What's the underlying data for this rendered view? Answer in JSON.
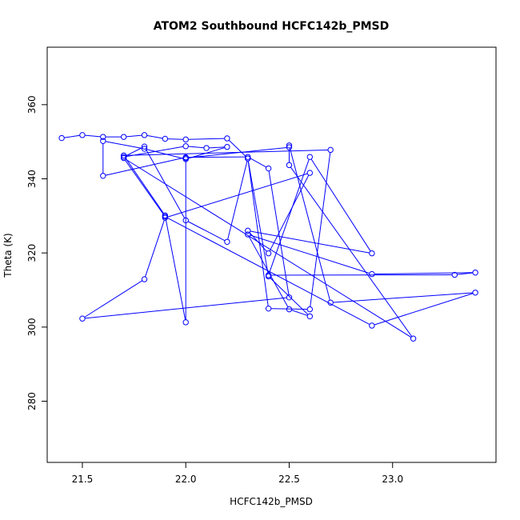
{
  "chart_data": {
    "type": "line",
    "title": "ATOM2 Southbound HCFC142b_PMSD",
    "xlabel": "HCFC142b_PMSD",
    "ylabel": "Theta (K)",
    "xlim": [
      21.33,
      23.5
    ],
    "ylim": [
      263.5,
      375.5
    ],
    "xticks": [
      21.5,
      22.0,
      22.5,
      23.0
    ],
    "xtick_labels": [
      "21.5",
      "22.0",
      "22.5",
      "23.0"
    ],
    "yticks": [
      280,
      300,
      320,
      340,
      360
    ],
    "ytick_labels": [
      "280",
      "300",
      "320",
      "340",
      "360"
    ],
    "grid": false,
    "line_color": "#0000ff",
    "marker": "open-circle",
    "series": [
      {
        "x": [
          21.4,
          21.5,
          21.6,
          21.7,
          21.8,
          21.9,
          22.0,
          22.2,
          22.3,
          22.2,
          22.0,
          21.8,
          21.7,
          22.0,
          22.1,
          22.2,
          22.0,
          21.8,
          21.6,
          21.6,
          22.0,
          22.3,
          22.4,
          22.5,
          21.5,
          21.8,
          21.9,
          22.6,
          22.4,
          22.3,
          22.9,
          22.6,
          22.4,
          23.3,
          23.4,
          22.9,
          22.3,
          22.5,
          22.6,
          22.4,
          22.3,
          22.4,
          22.6,
          22.7,
          21.7,
          21.9,
          22.0,
          22.0,
          22.5,
          22.5,
          23.1,
          21.7,
          21.9,
          22.9,
          23.4,
          22.7,
          22.5
        ],
        "y": [
          351,
          351.8,
          351.3,
          351.3,
          351.8,
          350.8,
          350.6,
          350.9,
          345.5,
          323.0,
          328.8,
          348.7,
          345.9,
          348.8,
          348.3,
          348.6,
          345.3,
          348.1,
          350.2,
          340.8,
          345.8,
          345.9,
          342.8,
          308.0,
          302.3,
          312.9,
          329.5,
          341.6,
          319.9,
          326.0,
          319.9,
          345.9,
          314.0,
          314.1,
          314.7,
          314.3,
          325.0,
          304.8,
          302.9,
          313.7,
          345.5,
          305.0,
          304.8,
          347.8,
          346.3,
          330.1,
          301.3,
          345.6,
          348.5,
          343.7,
          296.9,
          345.6,
          329.8,
          300.4,
          309.3,
          306.6,
          349.0
        ]
      }
    ]
  }
}
